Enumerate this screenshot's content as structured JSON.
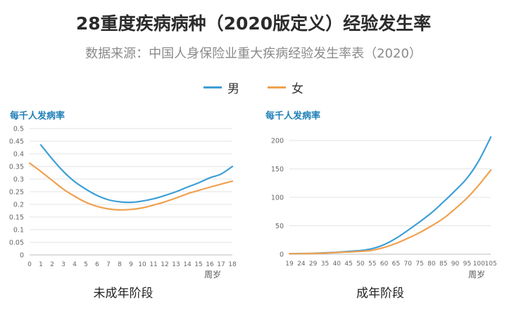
{
  "title": "28重度疾病病种（2020版定义）经验发生率",
  "subtitle": "数据来源：中国人身保险业重大疾病经验发生率表（2020）",
  "legend": {
    "male": "男",
    "female": "女"
  },
  "colors": {
    "male": "#3e9fd6",
    "female": "#f0a150",
    "grid": "#e3e3e3",
    "axis": "#bdbdbd"
  },
  "chart_data": [
    {
      "type": "line",
      "title": "未成年阶段",
      "ylabel": "每千人发病率",
      "xlabel": "周岁",
      "x": [
        0,
        1,
        2,
        3,
        4,
        5,
        6,
        7,
        8,
        9,
        10,
        11,
        12,
        13,
        14,
        15,
        16,
        17,
        18
      ],
      "ylim": [
        0,
        0.5
      ],
      "yticks": [
        "0",
        "0.05",
        "0.1",
        "0.15",
        "0.2",
        "0.25",
        "0.3",
        "0.35",
        "0.4",
        "0.45",
        "0.5"
      ],
      "xticks": [
        "0",
        "1",
        "2",
        "3",
        "4",
        "5",
        "6",
        "7",
        "8",
        "9",
        "10",
        "11",
        "12",
        "13",
        "14",
        "15",
        "16",
        "17",
        "18"
      ],
      "series": [
        {
          "name": "男",
          "x": [
            1,
            2,
            3,
            4,
            5,
            6,
            7,
            8,
            9,
            10,
            11,
            12,
            13,
            14,
            15,
            16,
            17,
            18
          ],
          "values": [
            0.435,
            0.38,
            0.33,
            0.29,
            0.26,
            0.235,
            0.218,
            0.21,
            0.208,
            0.213,
            0.222,
            0.235,
            0.25,
            0.268,
            0.285,
            0.305,
            0.32,
            0.35
          ]
        },
        {
          "name": "女",
          "x": [
            0,
            1,
            2,
            3,
            4,
            5,
            6,
            7,
            8,
            9,
            10,
            11,
            12,
            13,
            14,
            15,
            16,
            17,
            18
          ],
          "values": [
            0.363,
            0.33,
            0.295,
            0.26,
            0.232,
            0.208,
            0.192,
            0.182,
            0.178,
            0.18,
            0.186,
            0.197,
            0.21,
            0.225,
            0.242,
            0.255,
            0.268,
            0.28,
            0.292
          ]
        }
      ]
    },
    {
      "type": "line",
      "title": "成年阶段",
      "ylabel": "每千人发病率",
      "xlabel": "周岁",
      "x": [
        19,
        24,
        29,
        35,
        40,
        45,
        50,
        55,
        60,
        65,
        70,
        75,
        80,
        85,
        90,
        95,
        100,
        105
      ],
      "ylim": [
        0,
        210
      ],
      "yticks": [
        "0",
        "50",
        "100",
        "150",
        "200"
      ],
      "xticks": [
        "19",
        "24",
        "29",
        "35",
        "40",
        "45",
        "50",
        "55",
        "60",
        "65",
        "70",
        "75",
        "80",
        "85",
        "90",
        "95",
        "100",
        "105"
      ],
      "series": [
        {
          "name": "男",
          "values": [
            1,
            1.2,
            1.6,
            2.5,
            3.5,
            5,
            6.5,
            10,
            17,
            28,
            42,
            57,
            73,
            92,
            112,
            134,
            165,
            206
          ]
        },
        {
          "name": "女",
          "values": [
            0.8,
            1,
            1.4,
            2,
            3,
            4,
            5,
            7,
            12,
            19,
            28,
            38,
            50,
            63,
            80,
            99,
            122,
            148
          ]
        }
      ]
    }
  ]
}
